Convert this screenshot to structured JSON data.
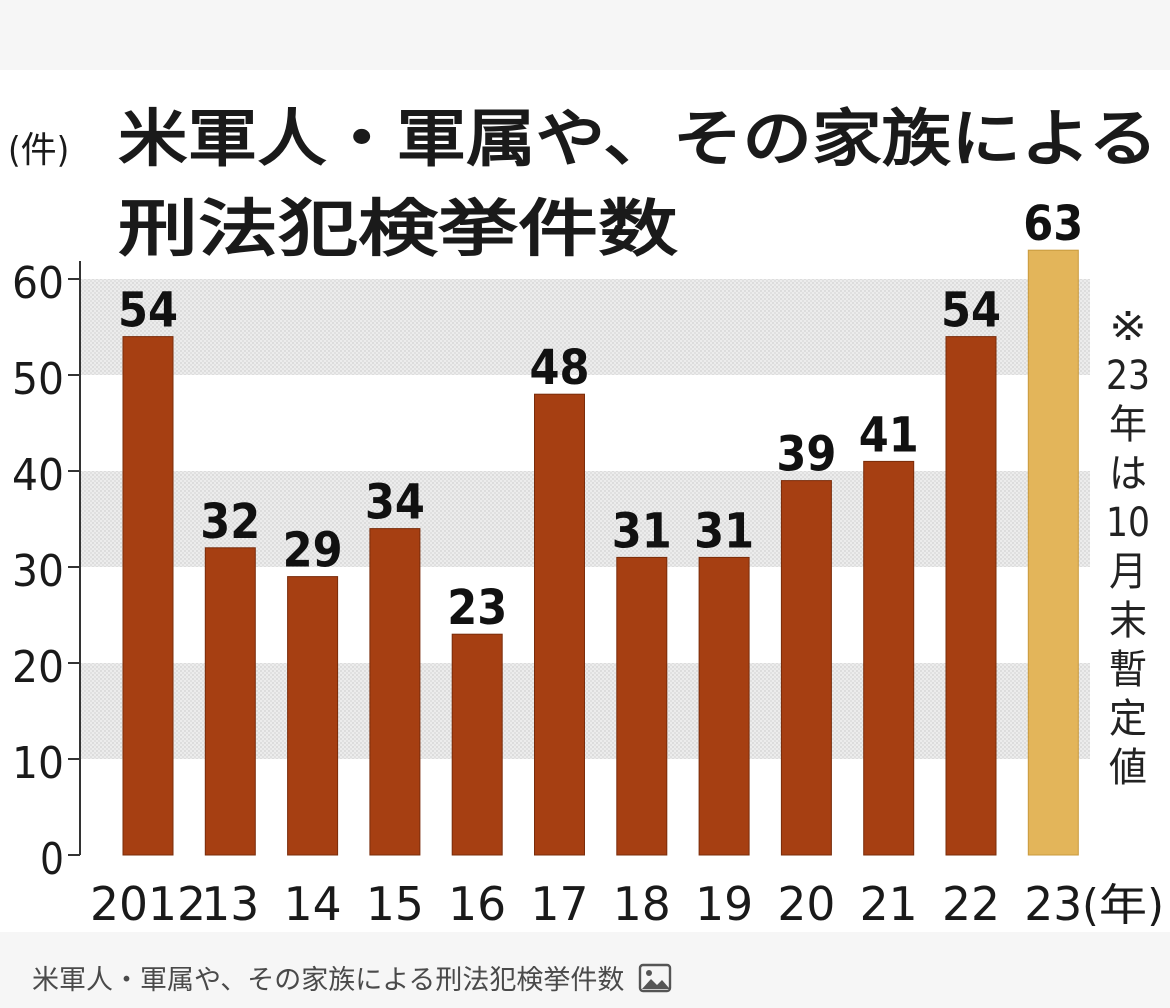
{
  "caption": {
    "text": "米軍人・軍属や、その家族による刑法犯検挙件数",
    "icon": "image-icon"
  },
  "chart_data": {
    "type": "bar",
    "title": "米軍人・軍属や、その家族による刑法犯検挙件数",
    "title_lines": [
      "米軍人・軍属や、その家族による",
      "刑法犯検挙件数"
    ],
    "ylabel": "(件)",
    "xlabel_unit": "(年)",
    "categories": [
      "2012",
      "13",
      "14",
      "15",
      "16",
      "17",
      "18",
      "19",
      "20",
      "21",
      "22",
      "23"
    ],
    "values": [
      54,
      32,
      29,
      34,
      23,
      48,
      31,
      31,
      39,
      41,
      54,
      63
    ],
    "ylim": [
      0,
      65
    ],
    "yticks": [
      0,
      10,
      20,
      30,
      40,
      50,
      60
    ],
    "grid": "alternating horizontal bands",
    "note": "※23年は10月末暫定値",
    "colors": {
      "bar": "#a63f12",
      "bar_highlight": "#e3b55a",
      "band": "#e6e6e6"
    }
  }
}
